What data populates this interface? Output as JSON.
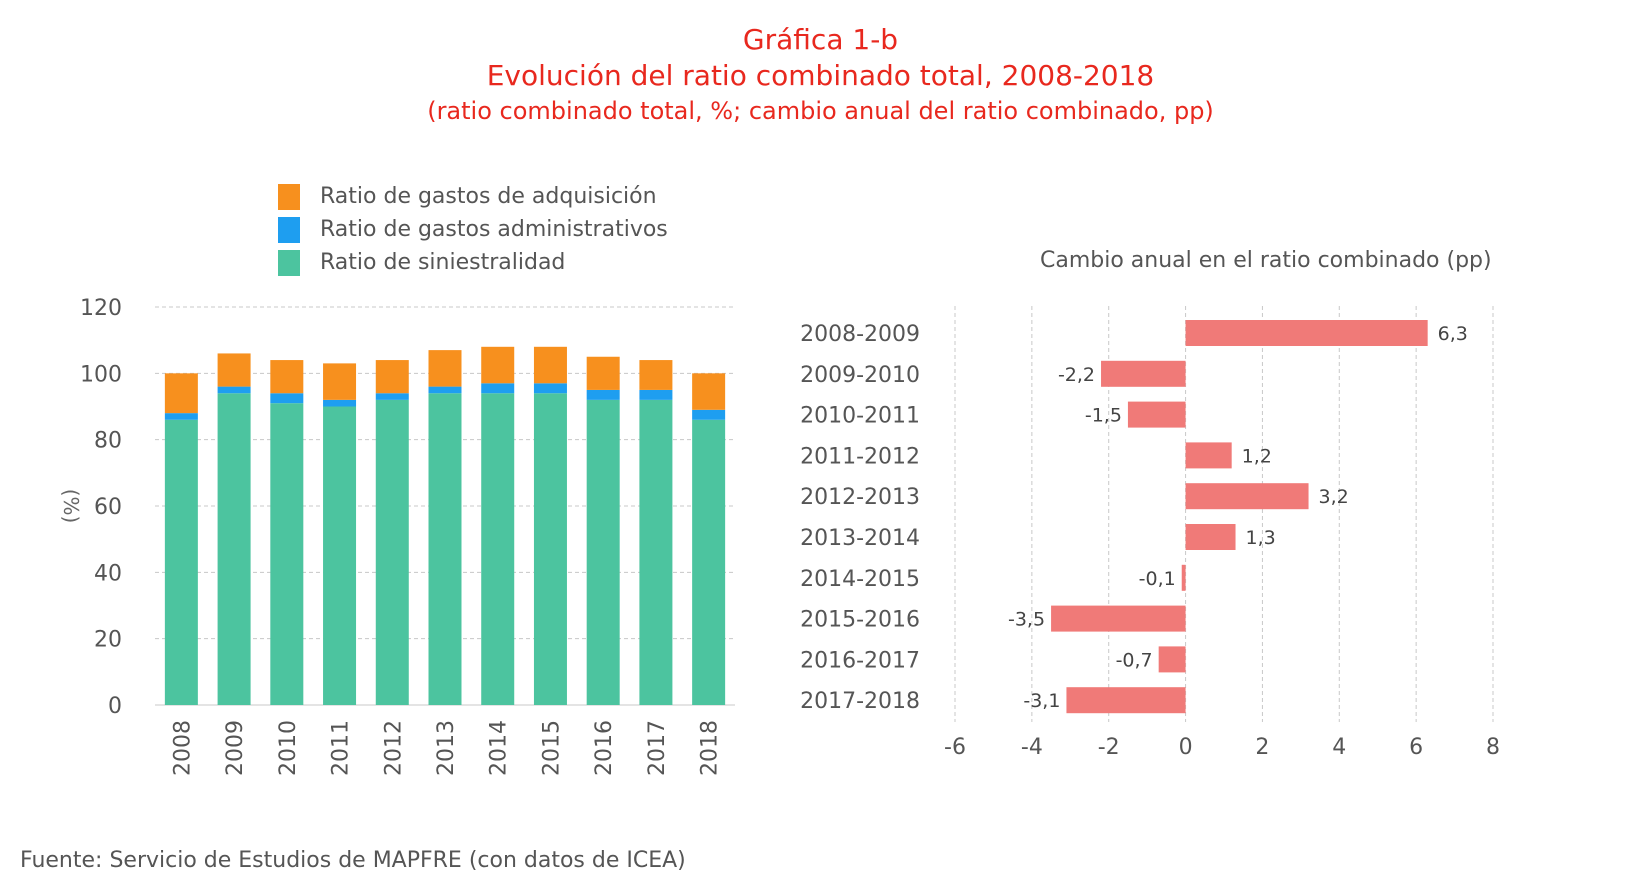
{
  "header": {
    "title": "Gráfica 1-b",
    "subtitle": "Evolución del ratio combinado total, 2008-2018",
    "subsubtitle": "(ratio combinado total, %; cambio anual del ratio combinado, pp)"
  },
  "legend": {
    "items": [
      {
        "label": "Ratio de gastos de adquisición",
        "color": "#f7901e"
      },
      {
        "label": "Ratio de gastos administrativos",
        "color": "#1e9ef0"
      },
      {
        "label": "Ratio de siniestralidad",
        "color": "#4cc49f"
      }
    ]
  },
  "right_chart_title": "Cambio anual en el ratio combinado (pp)",
  "source": "Fuente: Servicio de Estudios de MAPFRE (con datos de ICEA)",
  "chart_data": [
    {
      "type": "bar",
      "stacked": true,
      "categories": [
        "2008",
        "2009",
        "2010",
        "2011",
        "2012",
        "2013",
        "2014",
        "2015",
        "2016",
        "2017",
        "2018"
      ],
      "series": [
        {
          "name": "Ratio de siniestralidad",
          "color": "#4cc49f",
          "values": [
            86,
            94,
            91,
            90,
            92,
            94,
            94,
            94,
            92,
            92,
            86
          ]
        },
        {
          "name": "Ratio de gastos administrativos",
          "color": "#1e9ef0",
          "values": [
            2,
            2,
            3,
            2,
            2,
            2,
            3,
            3,
            3,
            3,
            3
          ]
        },
        {
          "name": "Ratio de gastos de adquisición",
          "color": "#f7901e",
          "values": [
            12,
            10,
            10,
            11,
            10,
            11,
            11,
            11,
            10,
            9,
            11
          ]
        }
      ],
      "ylabel": "(%)",
      "ylim": [
        0,
        120
      ],
      "yticks": [
        "0",
        "20",
        "40",
        "60",
        "80",
        "100",
        "120"
      ],
      "grid": true
    },
    {
      "type": "bar",
      "orientation": "horizontal",
      "categories": [
        "2008-2009",
        "2009-2010",
        "2010-2011",
        "2011-2012",
        "2012-2013",
        "2013-2014",
        "2014-2015",
        "2015-2016",
        "2016-2017",
        "2017-2018"
      ],
      "values": [
        6.3,
        -2.2,
        -1.5,
        1.2,
        3.2,
        1.3,
        -0.1,
        -3.5,
        -0.7,
        -3.1
      ],
      "labels": [
        "6,3",
        "-2,2",
        "-1,5",
        "1,2",
        "3,2",
        "1,3",
        "-0,1",
        "-3,5",
        "-0,7",
        "-3,1"
      ],
      "color": "#f07a78",
      "title": "Cambio anual en el ratio combinado (pp)",
      "xlim": [
        -6,
        8
      ],
      "xticks": [
        "-6",
        "-4",
        "-2",
        "0",
        "2",
        "4",
        "6",
        "8"
      ],
      "grid": true
    }
  ]
}
